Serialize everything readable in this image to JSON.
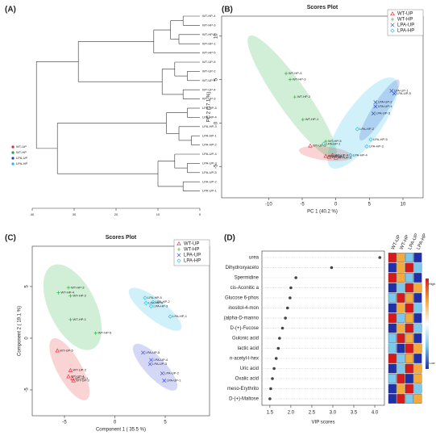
{
  "chart_data": [
    {
      "type": "dendrogram",
      "panel": "(A)",
      "groups": [
        {
          "name": "WT-UP",
          "color": "#e8212b"
        },
        {
          "name": "WT-HP",
          "color": "#1aa834"
        },
        {
          "name": "LPA-UP",
          "color": "#2a3bd0"
        },
        {
          "name": "LPA-HP",
          "color": "#17b9e6"
        }
      ],
      "leaves": [
        {
          "label": "WT-HP-4",
          "group": 1
        },
        {
          "label": "WT-HP-3",
          "group": 1
        },
        {
          "label": "WT-HP-2",
          "group": 1
        },
        {
          "label": "WT-HP-1",
          "group": 1
        },
        {
          "label": "WT-HP-5",
          "group": 1
        },
        {
          "label": "WT-UP-5",
          "group": 0
        },
        {
          "label": "WT-UP-2",
          "group": 0
        },
        {
          "label": "WT-UP-1",
          "group": 0
        },
        {
          "label": "WT-UP-4",
          "group": 0
        },
        {
          "label": "WT-UP-3",
          "group": 0
        },
        {
          "label": "LPA-HP-5",
          "group": 3
        },
        {
          "label": "LPA-HP-4",
          "group": 3
        },
        {
          "label": "LPA-HP-3",
          "group": 3
        },
        {
          "label": "LPA-HP-1",
          "group": 3
        },
        {
          "label": "LPA-HP-2",
          "group": 3
        },
        {
          "label": "LPA-UP-4",
          "group": 2
        },
        {
          "label": "LPA-UP-3",
          "group": 2
        },
        {
          "label": "LPA-UP-5",
          "group": 2
        },
        {
          "label": "LPA-UP-2",
          "group": 2
        },
        {
          "label": "LPA-UP-1",
          "group": 2
        }
      ],
      "tree": {
        "height": 39,
        "children": [
          {
            "height": 29,
            "children": [
              {
                "height": 11,
                "children": [
                  {
                    "height": 7,
                    "children": [
                      {
                        "height": 4,
                        "children": [
                          0,
                          1
                        ]
                      },
                      {
                        "height": 5,
                        "children": [
                          2,
                          3
                        ]
                      }
                    ]
                  },
                  4
                ]
              },
              {
                "height": 9,
                "children": [
                  {
                    "height": 6,
                    "children": [
                      5,
                      {
                        "height": 3,
                        "children": [
                          6,
                          7
                        ]
                      }
                    ]
                  },
                  {
                    "height": 4,
                    "children": [
                      8,
                      9
                    ]
                  }
                ]
              }
            ]
          },
          {
            "height": 34,
            "children": [
              {
                "height": 8,
                "children": [
                  {
                    "height": 3,
                    "children": [
                      10,
                      11
                    ]
                  },
                  {
                    "height": 5,
                    "children": [
                      12,
                      {
                        "height": 2,
                        "children": [
                          13,
                          14
                        ]
                      }
                    ]
                  }
                ]
              },
              {
                "height": 10,
                "children": [
                  {
                    "height": 6,
                    "children": [
                      15,
                      {
                        "height": 3,
                        "children": [
                          16,
                          17
                        ]
                      }
                    ]
                  },
                  {
                    "height": 4,
                    "children": [
                      18,
                      19
                    ]
                  }
                ]
              }
            ]
          }
        ]
      },
      "xlim": [
        40,
        0
      ],
      "xticks": [
        40,
        30,
        20,
        10,
        0
      ],
      "legend_corner": "bottom-left"
    },
    {
      "type": "scatter",
      "panel": "(B)",
      "title": "Scores Plot",
      "x_label": "PC 1 (40.2 %)",
      "y_label": "PC 2 (17.1 %)",
      "xlim": [
        -17,
        13
      ],
      "ylim": [
        -8.6,
        12.3
      ],
      "xticks": [
        -10,
        -5,
        0,
        5,
        10
      ],
      "yticks": [
        -5,
        0,
        5,
        10
      ],
      "legend_corner": "top-right",
      "series": [
        {
          "name": "WT-UP",
          "color": "#e8212b",
          "marker": "triangle",
          "labels": [
            "WT-UP-5",
            "WT-UP-2",
            "WT-UP-1",
            "WT-UP-4",
            "WT-UP-3"
          ],
          "x": [
            -3.8,
            -1.5,
            -1.0,
            -0.5,
            0.0
          ],
          "values": [
            -2.6,
            -3.8,
            -3.9,
            -3.7,
            -4.0
          ],
          "ellipse": {
            "cx": -1.5,
            "cy": -3.5,
            "rx": 4,
            "ry": 0.8,
            "angle": -5
          }
        },
        {
          "name": "WT-HP",
          "color": "#1aa834",
          "marker": "plus",
          "labels": [
            "WT-HP-4",
            "WT-HP-3",
            "WT-HP-2",
            "WT-HP-1",
            "WT-HP-5"
          ],
          "x": [
            -7.4,
            -6.8,
            -6.1,
            -4.9,
            -1.5
          ],
          "values": [
            5.7,
            5.0,
            3.0,
            0.4,
            -2.1
          ],
          "ellipse": {
            "cx": -6.5,
            "cy": 3,
            "rx": 9.5,
            "ry": 2,
            "angle": -47
          }
        },
        {
          "name": "LPA-UP",
          "color": "#2a3bd0",
          "marker": "cross",
          "labels": [
            "LPA-UP-5",
            "LPA-UP-1",
            "LPA-UP-2",
            "LPA-UP-4",
            "LPA-UP-3"
          ],
          "x": [
            8.7,
            8.3,
            5.9,
            5.9,
            5.6
          ],
          "values": [
            3.4,
            3.7,
            2.4,
            1.9,
            1.1
          ],
          "ellipse": {
            "cx": 6.5,
            "cy": 1.5,
            "rx": 4.5,
            "ry": 1,
            "angle": 50
          }
        },
        {
          "name": "LPA-HP",
          "color": "#17b9e6",
          "marker": "diamond",
          "labels": [
            "LPA-HP-2",
            "LPA-HP-5",
            "LPA-HP-3",
            "LPA-HP-4",
            "LPA-HP-1"
          ],
          "x": [
            3.2,
            5.2,
            4.6,
            2.2,
            -1.8
          ],
          "values": [
            -0.7,
            -1.9,
            -2.7,
            -3.7,
            -2.4
          ],
          "ellipse": {
            "cx": 4,
            "cy": 0,
            "rx": 7,
            "ry": 2.5,
            "angle": 45
          }
        }
      ]
    },
    {
      "type": "scatter",
      "panel": "(C)",
      "title": "Scores Plot",
      "x_label": "Component 1 ( 35.5 %)",
      "y_label": "Component 2 ( 19.1 %)",
      "xlim": [
        -8.2,
        9.4
      ],
      "ylim": [
        -7.5,
        8.9
      ],
      "xticks": [
        -5,
        0,
        5
      ],
      "yticks": [
        -5,
        0,
        5
      ],
      "legend_corner": "top-right",
      "series": [
        {
          "name": "WT-UP",
          "color": "#e8212b",
          "marker": "triangle",
          "labels": [
            "WT-UP-5",
            "WT-UP-2",
            "WT-UP-4",
            "WT-UP-1",
            "WT-UP-3"
          ],
          "x": [
            -5.7,
            -4.4,
            -4.6,
            -4.2,
            -4.1
          ],
          "values": [
            -1.2,
            -3.1,
            -3.7,
            -3.9,
            -4.1
          ],
          "ellipse": {
            "cx": -4.5,
            "cy": -3,
            "rx": 3.4,
            "ry": 1.2,
            "angle": -60
          }
        },
        {
          "name": "WT-HP",
          "color": "#1aa834",
          "marker": "plus",
          "labels": [
            "WT-HP-3",
            "WT-HP-4",
            "WT-HP-2",
            "WT-HP-1",
            "WT-HP-5"
          ],
          "x": [
            -4.6,
            -5.6,
            -4.4,
            -4.4,
            -1.9
          ],
          "values": [
            4.9,
            4.4,
            4.1,
            1.8,
            0.5
          ],
          "ellipse": {
            "cx": -4.2,
            "cy": 3,
            "rx": 4.5,
            "ry": 2.3,
            "angle": -63
          }
        },
        {
          "name": "LPA-UP",
          "color": "#2a3bd0",
          "marker": "cross",
          "labels": [
            "LPA-UP-5",
            "LPA-UP-4",
            "LPA-UP-3",
            "LPA-UP-2",
            "LPA-UP-1"
          ],
          "x": [
            2.8,
            3.6,
            3.5,
            4.7,
            4.9
          ],
          "values": [
            -1.4,
            -2.1,
            -2.5,
            -3.4,
            -4.1
          ],
          "ellipse": {
            "cx": 4,
            "cy": -2.8,
            "rx": 3,
            "ry": 1,
            "angle": -46
          }
        },
        {
          "name": "LPA-HP",
          "color": "#17b9e6",
          "marker": "diamond",
          "labels": [
            "LPA-HP-5",
            "LPA-HP-4",
            "LPA-HP-2",
            "LPA-HP-3",
            "LPA-HP-1"
          ],
          "x": [
            3.0,
            3.1,
            3.8,
            3.6,
            5.5
          ],
          "values": [
            3.9,
            3.4,
            3.5,
            3.1,
            2.1
          ],
          "ellipse": {
            "cx": 4,
            "cy": 2.8,
            "rx": 3.2,
            "ry": 1,
            "angle": -37
          }
        }
      ]
    },
    {
      "type": "vip",
      "panel": "(D)",
      "x_label": "VIP scores",
      "categories": [
        "urea",
        "Dihydroxyaceto",
        "Spermidine",
        "cis-Aconitic a",
        "Glucose 6-phos",
        "inositol-4-mon",
        "(alpha-D-manno",
        "D-(+)-Fucose",
        "Gulonic acid",
        "lactic acid",
        "n-acetyl-l-hex",
        "Uric acid",
        "Oxalic acid",
        "meso-Erythrito",
        "D-(+)-Maltose"
      ],
      "values": [
        4.12,
        2.97,
        2.12,
        2.0,
        1.98,
        1.92,
        1.87,
        1.8,
        1.73,
        1.7,
        1.65,
        1.6,
        1.56,
        1.52,
        1.5
      ],
      "xlim": [
        1.31,
        4.23
      ],
      "xticks": [
        1.5,
        {
          "value": 2,
          "label": "2.0"
        },
        2.5,
        {
          "value": 3,
          "label": "3.0"
        },
        3.5,
        {
          "value": 4,
          "label": "4.0"
        }
      ],
      "color": "#444444",
      "heatmap": {
        "columns": [
          "WT-UP",
          "WT-HP",
          "LPA-UP",
          "LPA-HP"
        ],
        "clim": [
          -1,
          1
        ],
        "colormap": [
          "#2230a8",
          "#7cc8ec",
          "#ffffff",
          "#f4a93c",
          "#d7191c"
        ],
        "values": [
          [
            1,
            0.5,
            -0.5,
            -1
          ],
          [
            -1,
            0.5,
            1,
            -0.5
          ],
          [
            1,
            0.5,
            -0.5,
            -1
          ],
          [
            -1,
            -0.5,
            1,
            0.5
          ],
          [
            -0.5,
            1,
            0.5,
            -1
          ],
          [
            -1,
            0.5,
            1,
            -0.5
          ],
          [
            1,
            -0.5,
            0.5,
            -1
          ],
          [
            -1,
            0.5,
            1,
            -0.5
          ],
          [
            -0.5,
            1,
            0.5,
            -1
          ],
          [
            -0.5,
            -1,
            1,
            0.5
          ],
          [
            1,
            -0.5,
            0.5,
            -1
          ],
          [
            -1,
            -0.5,
            1,
            0.5
          ],
          [
            -0.5,
            1,
            -1,
            0.5
          ],
          [
            -1,
            0.5,
            1,
            -0.5
          ],
          [
            -1,
            1,
            -0.5,
            0.5
          ]
        ]
      },
      "colorbar": {
        "high": "High",
        "low": "Low"
      }
    }
  ]
}
